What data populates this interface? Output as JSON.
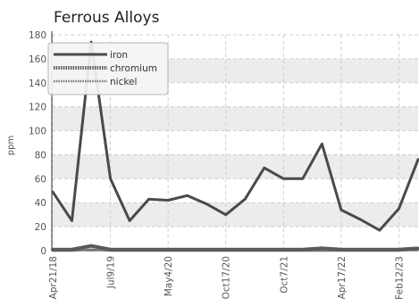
{
  "chart_data": {
    "type": "line",
    "title": "Ferrous Alloys",
    "ylabel": "ppm",
    "xlabel": "",
    "ylim": [
      0,
      180
    ],
    "yticks": [
      0,
      20,
      40,
      60,
      80,
      100,
      120,
      140,
      160,
      180
    ],
    "categories": [
      "Apr21/18",
      "",
      "",
      "Jul9/19",
      "",
      "",
      "May4/20",
      "",
      "",
      "Oct17/20",
      "",
      "",
      "Oct7/21",
      "",
      "",
      "Apr17/22",
      "",
      "",
      "Feb12/23",
      ""
    ],
    "series": [
      {
        "name": "iron",
        "color": "#4a4a4a",
        "values": [
          49,
          25,
          174,
          60,
          25,
          43,
          42,
          46,
          39,
          30,
          43,
          69,
          60,
          60,
          89,
          34,
          26,
          17,
          35,
          76
        ]
      },
      {
        "name": "chromium",
        "color": "#5a5a5a",
        "values": [
          1,
          1,
          4,
          1,
          1,
          1,
          1,
          1,
          1,
          1,
          1,
          1,
          1,
          1,
          2,
          1,
          1,
          1,
          1,
          2
        ]
      },
      {
        "name": "nickel",
        "color": "#777777",
        "values": [
          0,
          0,
          1,
          0,
          0,
          0,
          0,
          0,
          0,
          0,
          0,
          0,
          0,
          0,
          0,
          0,
          0,
          0,
          0,
          1
        ]
      }
    ],
    "grid": true,
    "legend": "top-left"
  }
}
